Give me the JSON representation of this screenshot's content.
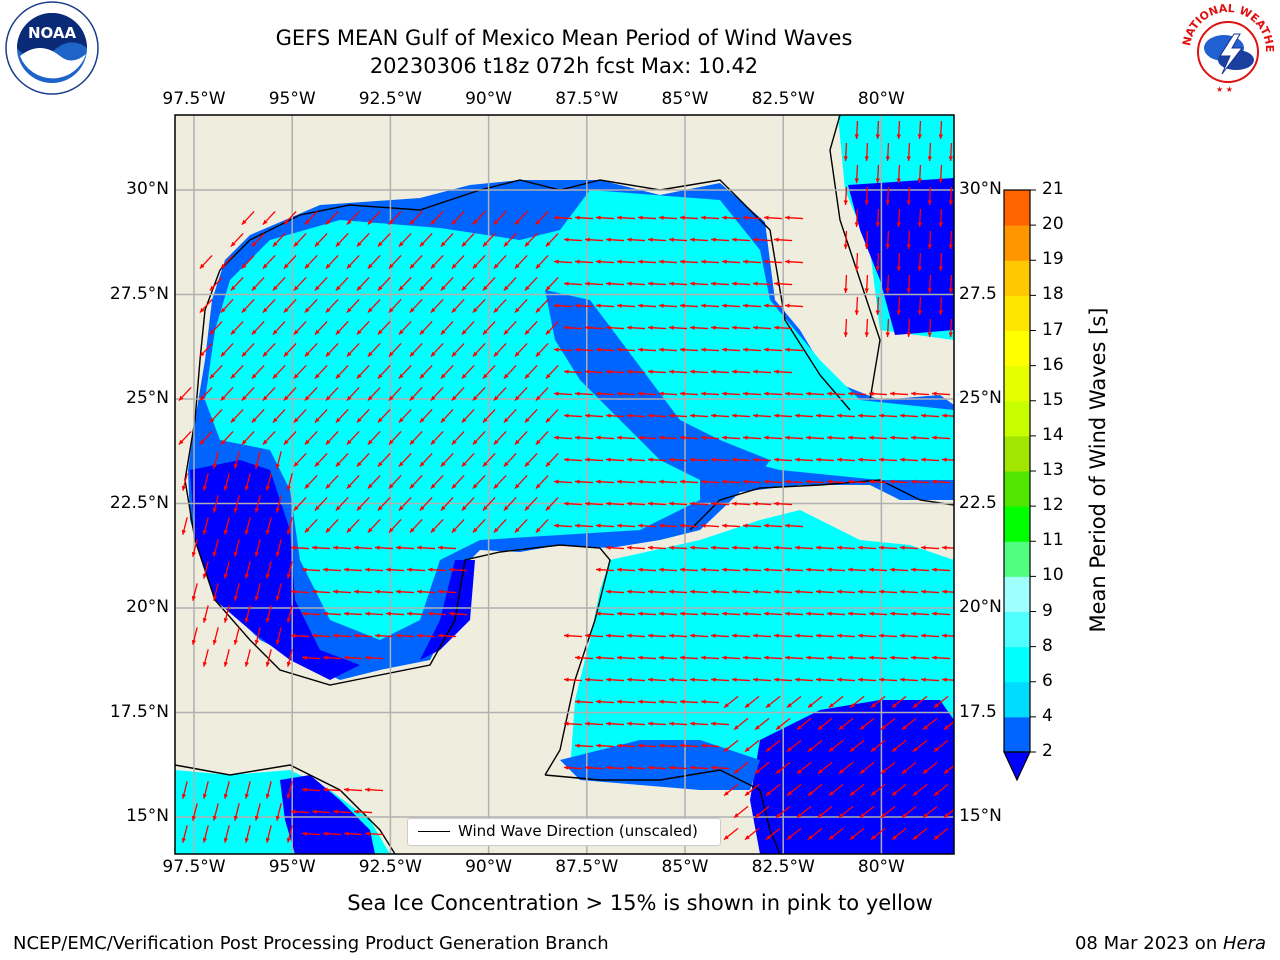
{
  "header": {
    "title_line1": "GEFS MEAN Gulf of Mexico Mean Period of Wind Waves",
    "title_line2": "20230306 t18z 072h fcst   Max: 10.42"
  },
  "logos": {
    "left": {
      "name": "NOAA",
      "ring_text": "NATIONAL OCEANIC AND ATMOSPHERIC ADMINISTRATION · U.S. DEPARTMENT OF COMMERCE"
    },
    "right": {
      "ring_text": "NATIONAL WEATHER SERVICE"
    }
  },
  "map": {
    "lon_labels": [
      "97.5°W",
      "95°W",
      "92.5°W",
      "90°W",
      "87.5°W",
      "85°W",
      "82.5°W",
      "80°W"
    ],
    "lat_labels_left": [
      "30°N",
      "27.5°N",
      "25°N",
      "22.5°N",
      "20°N",
      "17.5°N",
      "15°N"
    ],
    "lat_labels_right": [
      "30°N",
      "27.5",
      "25°N",
      "22.5",
      "20°N",
      "17.5",
      "15°N"
    ],
    "legend_label": "Wind Wave Direction (unscaled)",
    "colors": {
      "land": "#efedde",
      "coast": "#000000",
      "grid": "#b0b0b0",
      "arrow": "#ff0000",
      "frame": "#000000"
    }
  },
  "colorbar": {
    "label": "Mean Period of Wind Waves [s]",
    "ticks": [
      "2",
      "4",
      "6",
      "8",
      "9",
      "10",
      "11",
      "12",
      "13",
      "14",
      "15",
      "16",
      "17",
      "18",
      "19",
      "20",
      "21"
    ],
    "colors": [
      "#0064ff",
      "#00dcff",
      "#00ffff",
      "#50ffff",
      "#a0ffff",
      "#50ff80",
      "#00ff00",
      "#50e600",
      "#a0e600",
      "#c8ff00",
      "#e6ff00",
      "#ffff00",
      "#ffe600",
      "#ffc800",
      "#ff9600",
      "#ff6400",
      "#ff3200",
      "#ff0000"
    ],
    "under_color": "#0000ff"
  },
  "footer": {
    "sea_ice_note": "Sea Ice Concentration > 15% is shown in pink to yellow",
    "credit": "NCEP/EMC/Verification Post Processing Product Generation Branch",
    "date": "08 Mar 2023 on ",
    "machine": "Hera"
  }
}
